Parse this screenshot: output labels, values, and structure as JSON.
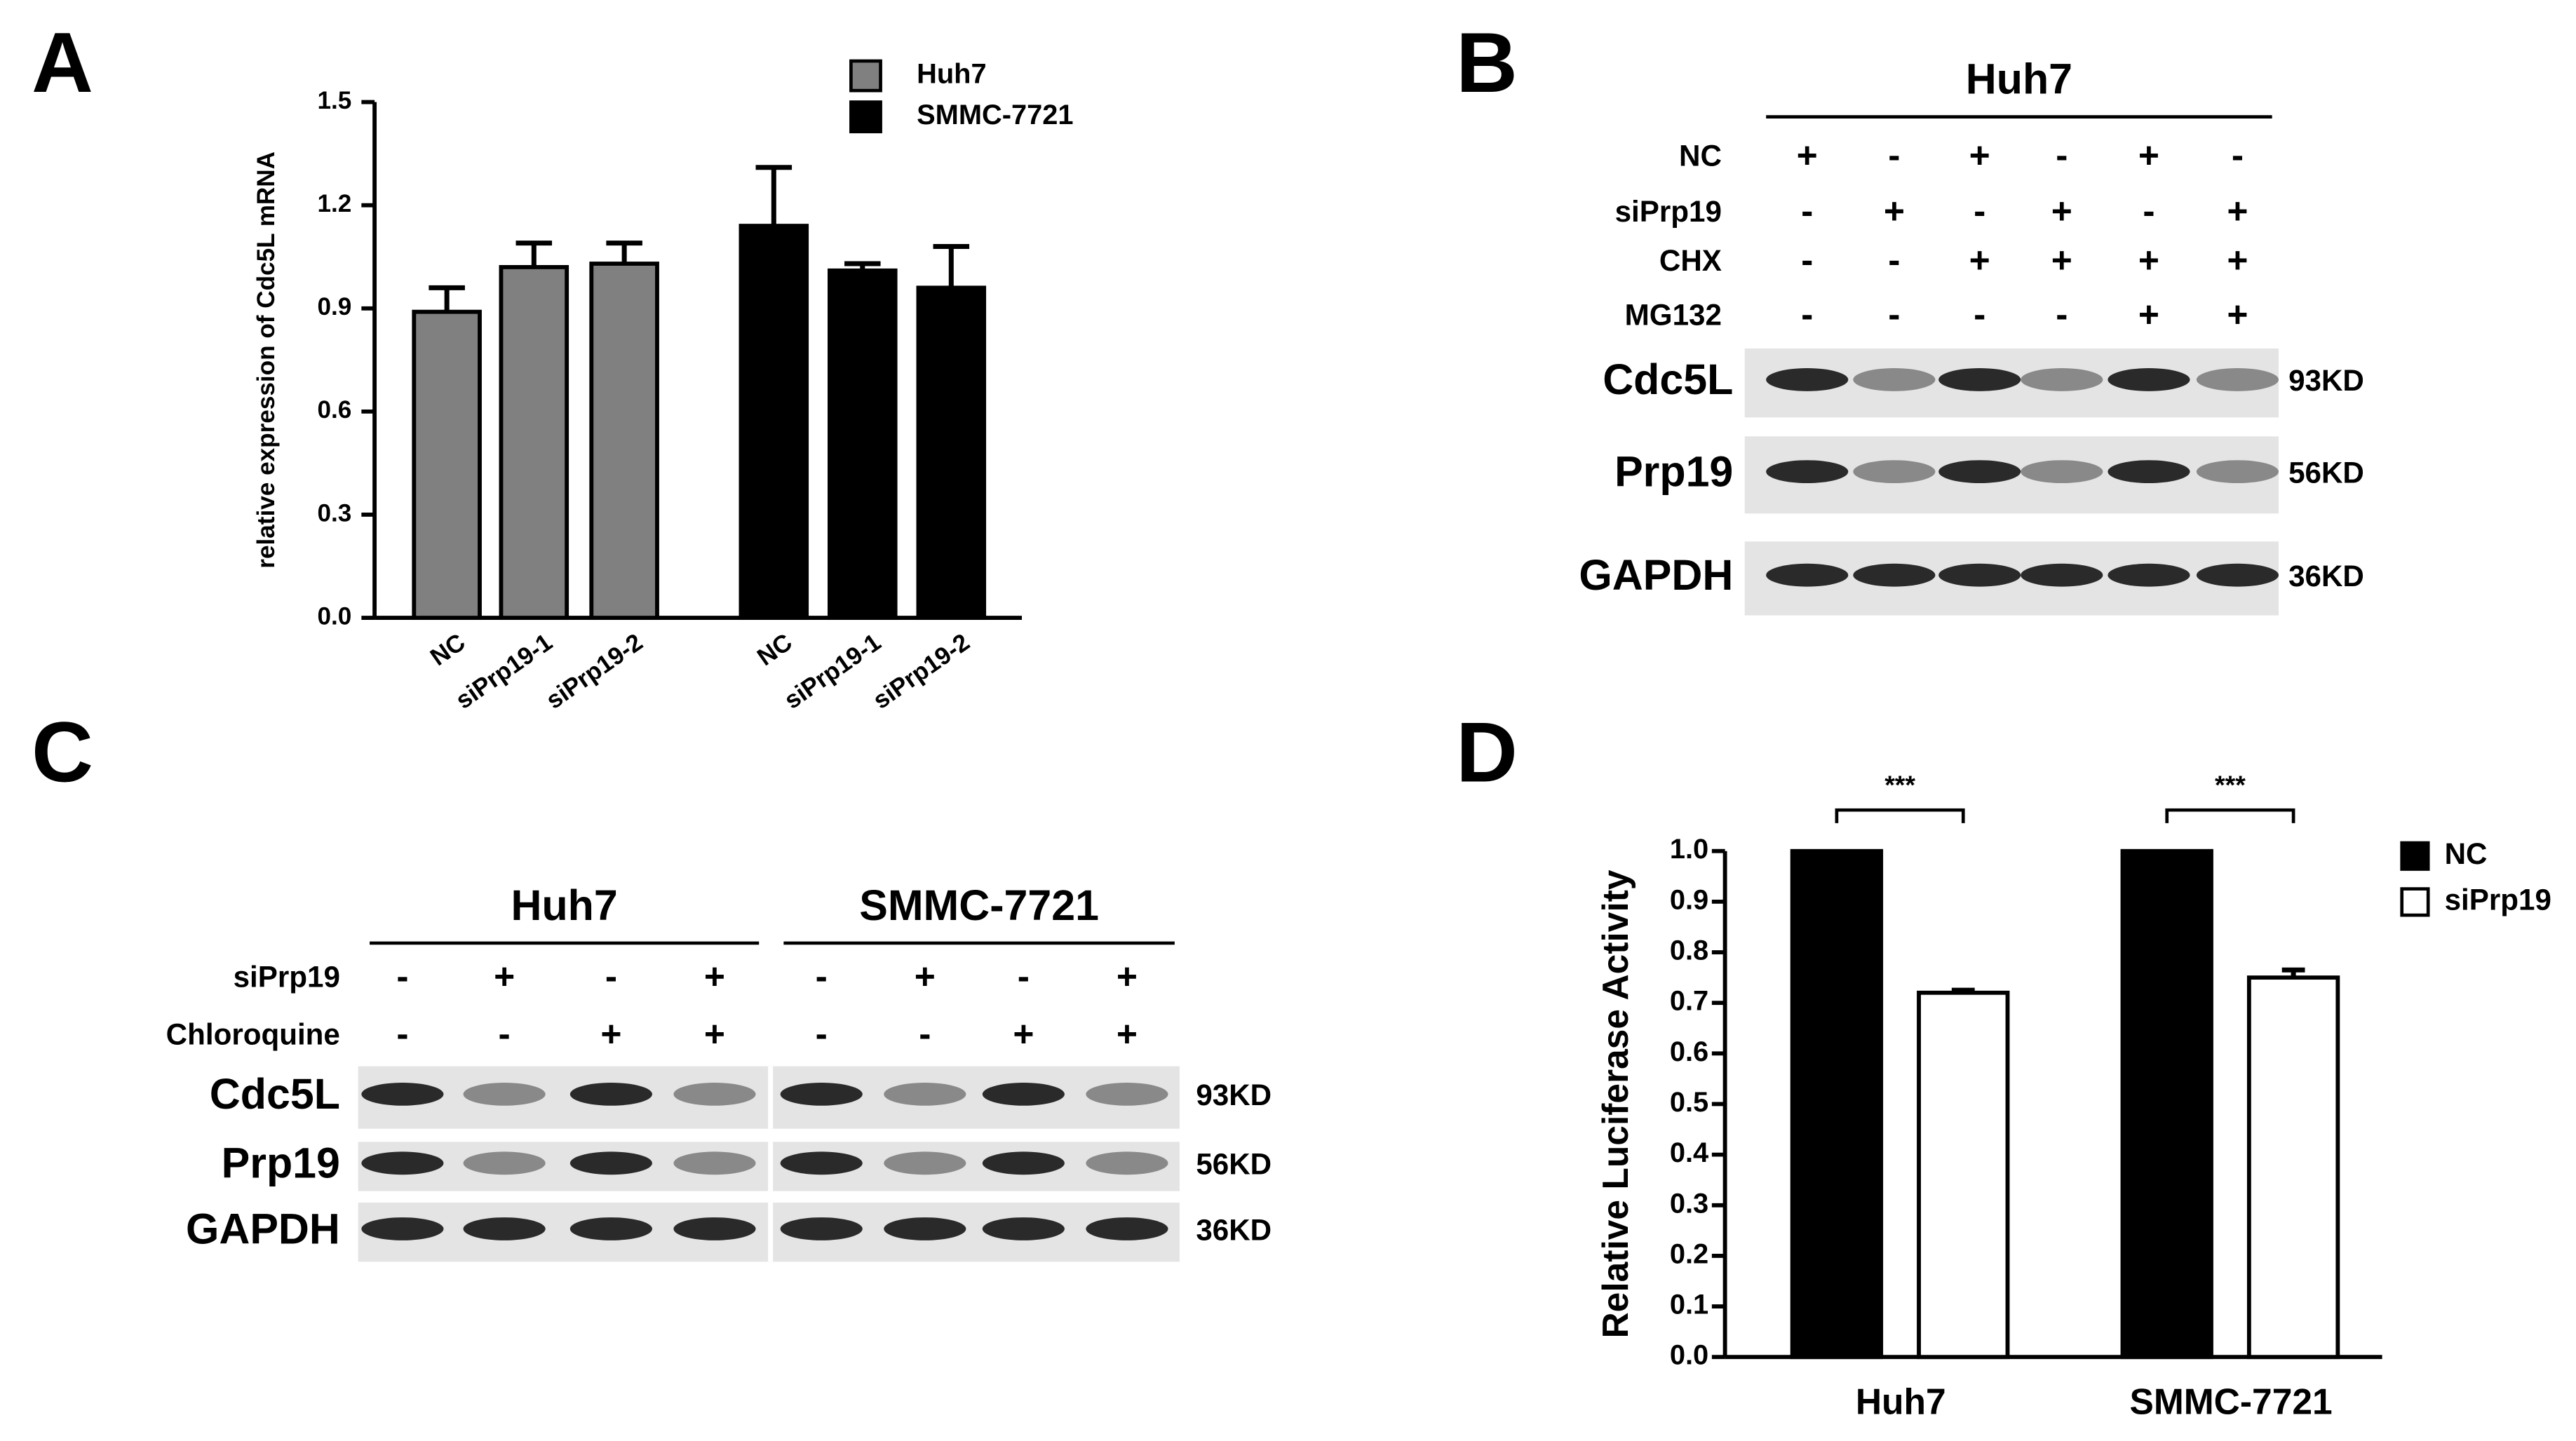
{
  "panel_labels": [
    "A",
    "B",
    "C",
    "D"
  ],
  "chart_data": [
    {
      "type": "bar",
      "y_label": "relative expression of Cdc5L mRNA",
      "categories": [
        "NC",
        "siPrp19-1",
        "siPrp19-2",
        "NC",
        "siPrp19-1",
        "siPrp19-2"
      ],
      "series": [
        {
          "name": "Huh7",
          "color": "#808080",
          "values": [
            0.89,
            1.02,
            1.03,
            null,
            null,
            null
          ],
          "errors": [
            0.07,
            0.07,
            0.06,
            null,
            null,
            null
          ]
        },
        {
          "name": "SMMC-7721",
          "color": "#000000",
          "values": [
            null,
            null,
            null,
            1.14,
            1.01,
            0.96
          ],
          "errors": [
            null,
            null,
            null,
            0.17,
            0.02,
            0.12
          ]
        }
      ],
      "ylim": [
        0,
        1.5
      ],
      "yticks": [
        {
          "value": 0,
          "label": "0.0"
        },
        {
          "value": 0.3,
          "label": "0.3"
        },
        {
          "value": 0.6,
          "label": "0.6"
        },
        {
          "value": 0.9,
          "label": "0.9"
        },
        {
          "value": 1.2,
          "label": "1.2"
        },
        {
          "value": 1.5,
          "label": "1.5"
        }
      ]
    },
    {
      "type": "bar",
      "y_label": "Relative Luciferase Activity",
      "categories": [
        "Huh7",
        "SMMC-7721"
      ],
      "series": [
        {
          "name": "NC",
          "color": "#000000",
          "values": [
            1.0,
            1.0
          ]
        },
        {
          "name": "siPrp19",
          "color": "#ffffff",
          "values": [
            0.72,
            0.75
          ],
          "errors": [
            0.005,
            0.015
          ]
        }
      ],
      "annotations": [
        "***",
        "***"
      ],
      "ylim": [
        0,
        1.0
      ],
      "yticks": [
        {
          "value": 0,
          "label": "0.0"
        },
        {
          "value": 0.1,
          "label": "0.1"
        },
        {
          "value": 0.2,
          "label": "0.2"
        },
        {
          "value": 0.3,
          "label": "0.3"
        },
        {
          "value": 0.4,
          "label": "0.4"
        },
        {
          "value": 0.5,
          "label": "0.5"
        },
        {
          "value": 0.6,
          "label": "0.6"
        },
        {
          "value": 0.7,
          "label": "0.7"
        },
        {
          "value": 0.8,
          "label": "0.8"
        },
        {
          "value": 0.9,
          "label": "0.9"
        },
        {
          "value": 1.0,
          "label": "1.0"
        }
      ]
    }
  ],
  "blots": [
    {
      "groups": [
        "Huh7"
      ],
      "treatments": [
        {
          "label": "NC",
          "signs": [
            "+",
            "-",
            "+",
            "-",
            "+",
            "-"
          ]
        },
        {
          "label": "siPrp19",
          "signs": [
            "-",
            "+",
            "-",
            "+",
            "-",
            "+"
          ]
        },
        {
          "label": "CHX",
          "signs": [
            "-",
            "-",
            "+",
            "+",
            "+",
            "+"
          ]
        },
        {
          "label": "MG132",
          "signs": [
            "-",
            "-",
            "-",
            "-",
            "+",
            "+"
          ]
        }
      ],
      "bands": [
        {
          "protein": "Cdc5L",
          "size": "93KD"
        },
        {
          "protein": "Prp19",
          "size": "56KD"
        },
        {
          "protein": "GAPDH",
          "size": "36KD"
        }
      ]
    },
    {
      "groups": [
        "Huh7",
        "SMMC-7721"
      ],
      "treatments": [
        {
          "label": "siPrp19",
          "signs": [
            "-",
            "+",
            "-",
            "+",
            "-",
            "+",
            "-",
            "+"
          ]
        },
        {
          "label": "Chloroquine",
          "signs": [
            "-",
            "-",
            "+",
            "+",
            "-",
            "-",
            "+",
            "+"
          ]
        }
      ],
      "bands": [
        {
          "protein": "Cdc5L",
          "size": "93KD"
        },
        {
          "protein": "Prp19",
          "size": "56KD"
        },
        {
          "protein": "GAPDH",
          "size": "36KD"
        }
      ]
    }
  ]
}
